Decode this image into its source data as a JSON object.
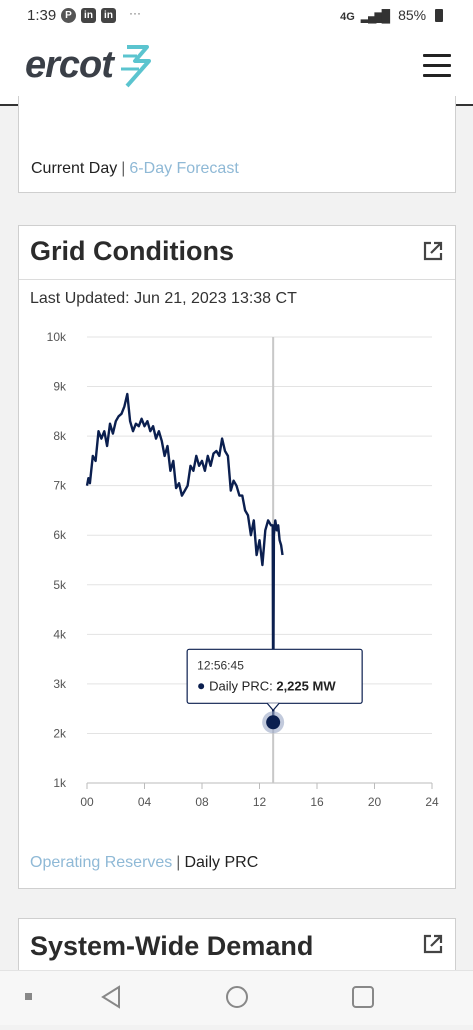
{
  "status_bar": {
    "time": "1:39",
    "app_icons": [
      "P",
      "in",
      "in"
    ],
    "overflow": "···",
    "network": "4G",
    "battery": "85%"
  },
  "header": {
    "logo_text": "ercot",
    "menu_icon": "hamburger-menu-icon"
  },
  "card_top": {
    "links": {
      "current": "Current Day",
      "separator": "|",
      "other": "6-Day Forecast"
    }
  },
  "grid_conditions": {
    "title": "Grid Conditions",
    "last_updated": "Last Updated: Jun 21, 2023 13:38 CT",
    "links": {
      "first": "Operating Reserves",
      "separator": "|",
      "second": "Daily PRC"
    }
  },
  "system_wide_demand": {
    "title": "System-Wide Demand"
  },
  "chart_data": {
    "type": "line",
    "x_unit": "hour",
    "xlim": [
      0,
      24
    ],
    "ylim": [
      1000,
      10000
    ],
    "x_ticks": [
      "00",
      "04",
      "08",
      "12",
      "16",
      "20",
      "24"
    ],
    "y_ticks": [
      "10k",
      "9k",
      "8k",
      "7k",
      "6k",
      "5k",
      "4k",
      "3k",
      "2k",
      "1k"
    ],
    "grid": true,
    "color": "#0b1f4f",
    "series": [
      {
        "name": "Daily PRC",
        "x": [
          0,
          0.1,
          0.2,
          0.4,
          0.6,
          0.8,
          1.0,
          1.2,
          1.4,
          1.6,
          1.8,
          2.0,
          2.2,
          2.4,
          2.6,
          2.8,
          3.0,
          3.2,
          3.4,
          3.6,
          3.8,
          4.0,
          4.2,
          4.4,
          4.6,
          4.8,
          5.0,
          5.2,
          5.4,
          5.6,
          5.8,
          6.0,
          6.2,
          6.4,
          6.6,
          6.8,
          7.0,
          7.2,
          7.4,
          7.6,
          7.8,
          8.0,
          8.2,
          8.4,
          8.6,
          8.8,
          9.0,
          9.2,
          9.4,
          9.6,
          9.8,
          10.0,
          10.2,
          10.4,
          10.6,
          10.8,
          11.0,
          11.2,
          11.4,
          11.6,
          11.8,
          12.0,
          12.2,
          12.4,
          12.6,
          12.8,
          12.92,
          12.95,
          13.0,
          13.1,
          13.2,
          13.3,
          13.4,
          13.5,
          13.6
        ],
        "y": [
          7000,
          7150,
          7050,
          7600,
          7500,
          8100,
          7950,
          8100,
          7800,
          8250,
          8050,
          8300,
          8400,
          8450,
          8600,
          8850,
          8300,
          8100,
          8250,
          8200,
          8350,
          8200,
          8300,
          8100,
          8200,
          7950,
          8100,
          7900,
          7600,
          7800,
          7300,
          7500,
          6950,
          7050,
          6800,
          6900,
          7000,
          7400,
          7300,
          7600,
          7400,
          7500,
          7300,
          7600,
          7400,
          7650,
          7700,
          7600,
          7950,
          7700,
          7600,
          6900,
          7100,
          7000,
          6800,
          6800,
          6500,
          6400,
          6000,
          6300,
          5600,
          5900,
          5400,
          6100,
          6300,
          6200,
          6200,
          2225,
          6000,
          6300,
          6100,
          6200,
          5900,
          5800,
          5600
        ]
      }
    ],
    "tooltip": {
      "time": "12:56:45",
      "label": "Daily PRC:",
      "value": "2,225 MW",
      "x": 12.95,
      "y": 2225
    }
  }
}
